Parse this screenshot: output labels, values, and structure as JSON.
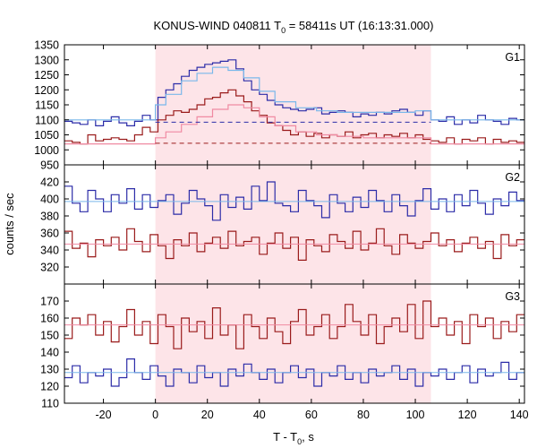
{
  "figure": {
    "title_main": "KONUS-WIND 040811 T",
    "title_sub": "0",
    "title_rest": " = 58411s UT (16:13:31.000)",
    "ylabel": "counts / sec",
    "xlabel_main": "T - T",
    "xlabel_sub": "0",
    "xlabel_rest": ", s"
  },
  "chart_data": [
    {
      "type": "line",
      "panel": "G1",
      "label": "G1",
      "xlim": [
        -35,
        142
      ],
      "ylim": [
        950,
        1350
      ],
      "yticks": [
        950,
        1000,
        1050,
        1100,
        1150,
        1200,
        1250,
        1300,
        1350
      ],
      "xticks": [
        -20,
        0,
        20,
        40,
        60,
        80,
        100,
        120,
        140
      ],
      "highlight_range": [
        0,
        106
      ],
      "series": [
        {
          "color": "#2c2ca8",
          "style": "step",
          "x": [
            -35,
            -32,
            -29,
            -26,
            -23,
            -20,
            -17,
            -14,
            -11,
            -8,
            -5,
            -2,
            1,
            4,
            7,
            10,
            13,
            16,
            19,
            22,
            25,
            28,
            31,
            34,
            37,
            40,
            43,
            46,
            49,
            52,
            55,
            58,
            61,
            64,
            67,
            70,
            73,
            76,
            79,
            82,
            85,
            88,
            91,
            94,
            97,
            100,
            103,
            106,
            109,
            112,
            115,
            118,
            121,
            124,
            127,
            130,
            133,
            136,
            139,
            142
          ],
          "y": [
            1095,
            1090,
            1085,
            1100,
            1080,
            1095,
            1110,
            1090,
            1080,
            1095,
            1115,
            1100,
            1175,
            1200,
            1220,
            1245,
            1265,
            1275,
            1285,
            1290,
            1295,
            1300,
            1270,
            1230,
            1200,
            1185,
            1165,
            1150,
            1140,
            1135,
            1130,
            1135,
            1140,
            1120,
            1125,
            1130,
            1125,
            1110,
            1120,
            1115,
            1125,
            1120,
            1130,
            1135,
            1125,
            1115,
            1130,
            1100,
            1095,
            1110,
            1085,
            1100,
            1090,
            1115,
            1100,
            1095,
            1085,
            1105,
            1100,
            1090
          ]
        },
        {
          "color": "#9a1b1b",
          "style": "step",
          "x": [
            -35,
            -32,
            -29,
            -26,
            -23,
            -20,
            -17,
            -14,
            -11,
            -8,
            -5,
            -2,
            1,
            4,
            7,
            10,
            13,
            16,
            19,
            22,
            25,
            28,
            31,
            34,
            37,
            40,
            43,
            46,
            49,
            52,
            55,
            58,
            61,
            64,
            67,
            70,
            73,
            76,
            79,
            82,
            85,
            88,
            91,
            94,
            97,
            100,
            103,
            106,
            109,
            112,
            115,
            118,
            121,
            124,
            127,
            130,
            133,
            136,
            139,
            142
          ],
          "y": [
            1030,
            1025,
            1020,
            1050,
            1030,
            1035,
            1040,
            1035,
            1030,
            1050,
            1075,
            1060,
            1100,
            1115,
            1130,
            1125,
            1135,
            1150,
            1170,
            1175,
            1190,
            1200,
            1180,
            1160,
            1130,
            1115,
            1090,
            1080,
            1065,
            1050,
            1060,
            1045,
            1055,
            1040,
            1050,
            1045,
            1060,
            1040,
            1050,
            1055,
            1040,
            1050,
            1045,
            1055,
            1040,
            1050,
            1035,
            1030,
            1025,
            1040,
            1020,
            1035,
            1030,
            1040,
            1020,
            1035,
            1025,
            1030,
            1025,
            1020
          ]
        },
        {
          "color": "#7ab8ea",
          "style": "step",
          "x": [
            -35,
            0,
            4,
            10,
            16,
            22,
            28,
            34,
            40,
            46,
            54,
            62,
            70,
            80,
            90,
            100,
            106,
            142
          ],
          "y": [
            1100,
            1150,
            1185,
            1230,
            1255,
            1275,
            1265,
            1240,
            1195,
            1160,
            1140,
            1130,
            1125,
            1125,
            1125,
            1130,
            1100,
            1100
          ]
        },
        {
          "color": "#f08aa2",
          "style": "step",
          "x": [
            -35,
            0,
            4,
            10,
            16,
            22,
            28,
            34,
            40,
            46,
            54,
            62,
            70,
            80,
            90,
            100,
            106,
            142
          ],
          "y": [
            1020,
            1040,
            1060,
            1085,
            1110,
            1135,
            1150,
            1140,
            1110,
            1080,
            1060,
            1050,
            1045,
            1040,
            1040,
            1040,
            1020,
            1020
          ]
        },
        {
          "color": "#2c2ca8",
          "style": "dashed",
          "x": [
            0,
            106
          ],
          "y": [
            1092,
            1092
          ]
        },
        {
          "color": "#9a1b1b",
          "style": "dashed",
          "x": [
            0,
            106
          ],
          "y": [
            1022,
            1022
          ]
        }
      ]
    },
    {
      "type": "line",
      "panel": "G2",
      "label": "G2",
      "xlim": [
        -35,
        142
      ],
      "ylim": [
        300,
        440
      ],
      "yticks": [
        300,
        320,
        340,
        360,
        380,
        400,
        420
      ],
      "xticks": [
        -20,
        0,
        20,
        40,
        60,
        80,
        100,
        120,
        140
      ],
      "highlight_range": [
        0,
        106
      ],
      "series": [
        {
          "color": "#2c2ca8",
          "style": "step",
          "x": [
            -35,
            -32,
            -29,
            -26,
            -23,
            -20,
            -17,
            -14,
            -11,
            -8,
            -5,
            -2,
            1,
            4,
            7,
            10,
            13,
            16,
            19,
            22,
            25,
            28,
            31,
            34,
            37,
            40,
            43,
            46,
            49,
            52,
            55,
            58,
            61,
            64,
            67,
            70,
            73,
            76,
            79,
            82,
            85,
            88,
            91,
            94,
            97,
            100,
            103,
            106,
            109,
            112,
            115,
            118,
            121,
            124,
            127,
            130,
            133,
            136,
            139,
            142
          ],
          "y": [
            415,
            395,
            385,
            410,
            400,
            385,
            405,
            395,
            412,
            388,
            405,
            390,
            398,
            405,
            382,
            395,
            410,
            400,
            392,
            375,
            405,
            390,
            402,
            388,
            415,
            398,
            420,
            395,
            392,
            385,
            410,
            398,
            392,
            378,
            405,
            395,
            385,
            402,
            390,
            410,
            398,
            385,
            405,
            392,
            380,
            398,
            412,
            388,
            400,
            385,
            405,
            392,
            410,
            395,
            382,
            400,
            392,
            408,
            398,
            392
          ]
        },
        {
          "color": "#9a1b1b",
          "style": "step",
          "x": [
            -35,
            -32,
            -29,
            -26,
            -23,
            -20,
            -17,
            -14,
            -11,
            -8,
            -5,
            -2,
            1,
            4,
            7,
            10,
            13,
            16,
            19,
            22,
            25,
            28,
            31,
            34,
            37,
            40,
            43,
            46,
            49,
            52,
            55,
            58,
            61,
            64,
            67,
            70,
            73,
            76,
            79,
            82,
            85,
            88,
            91,
            94,
            97,
            100,
            103,
            106,
            109,
            112,
            115,
            118,
            121,
            124,
            127,
            130,
            133,
            136,
            139,
            142
          ],
          "y": [
            362,
            342,
            348,
            332,
            352,
            345,
            355,
            340,
            365,
            350,
            338,
            358,
            345,
            330,
            352,
            345,
            360,
            338,
            348,
            355,
            342,
            362,
            345,
            350,
            355,
            335,
            348,
            360,
            342,
            355,
            328,
            352,
            345,
            338,
            358,
            350,
            342,
            362,
            340,
            348,
            365,
            345,
            335,
            358,
            348,
            342,
            350,
            360,
            345,
            352,
            338,
            348,
            355,
            342,
            350,
            330,
            358,
            345,
            352,
            340
          ]
        },
        {
          "color": "#7ab8ea",
          "style": "line",
          "x": [
            -35,
            142
          ],
          "y": [
            397,
            397
          ]
        },
        {
          "color": "#f08aa2",
          "style": "line",
          "x": [
            -35,
            142
          ],
          "y": [
            347,
            347
          ]
        }
      ]
    },
    {
      "type": "line",
      "panel": "G3",
      "label": "G3",
      "xlim": [
        -35,
        142
      ],
      "ylim": [
        110,
        180
      ],
      "yticks": [
        110,
        120,
        130,
        140,
        150,
        160,
        170
      ],
      "xticks": [
        -20,
        0,
        20,
        40,
        60,
        80,
        100,
        120,
        140
      ],
      "highlight_range": [
        0,
        106
      ],
      "series": [
        {
          "color": "#9a1b1b",
          "style": "step",
          "x": [
            -35,
            -32,
            -29,
            -26,
            -23,
            -20,
            -17,
            -14,
            -11,
            -8,
            -5,
            -2,
            1,
            4,
            7,
            10,
            13,
            16,
            19,
            22,
            25,
            28,
            31,
            34,
            37,
            40,
            43,
            46,
            49,
            52,
            55,
            58,
            61,
            64,
            67,
            70,
            73,
            76,
            79,
            82,
            85,
            88,
            91,
            94,
            97,
            100,
            103,
            106,
            109,
            112,
            115,
            118,
            121,
            124,
            127,
            130,
            133,
            136,
            139,
            142
          ],
          "y": [
            148,
            160,
            156,
            162,
            150,
            158,
            146,
            155,
            165,
            150,
            158,
            145,
            162,
            155,
            142,
            160,
            152,
            158,
            148,
            166,
            150,
            156,
            142,
            162,
            155,
            148,
            160,
            152,
            145,
            158,
            165,
            150,
            155,
            162,
            148,
            155,
            168,
            158,
            150,
            162,
            145,
            155,
            160,
            152,
            168,
            148,
            170,
            155,
            160,
            150,
            158,
            145,
            162,
            155,
            160,
            148,
            158,
            152,
            162,
            155
          ]
        },
        {
          "color": "#2c2ca8",
          "style": "step",
          "x": [
            -35,
            -32,
            -29,
            -26,
            -23,
            -20,
            -17,
            -14,
            -11,
            -8,
            -5,
            -2,
            1,
            4,
            7,
            10,
            13,
            16,
            19,
            22,
            25,
            28,
            31,
            34,
            37,
            40,
            43,
            46,
            49,
            52,
            55,
            58,
            61,
            64,
            67,
            70,
            73,
            76,
            79,
            82,
            85,
            88,
            91,
            94,
            97,
            100,
            103,
            106,
            109,
            112,
            115,
            118,
            121,
            124,
            127,
            130,
            133,
            136,
            139,
            142
          ],
          "y": [
            125,
            132,
            122,
            128,
            126,
            130,
            120,
            125,
            136,
            128,
            124,
            132,
            126,
            120,
            130,
            128,
            122,
            132,
            125,
            128,
            120,
            130,
            126,
            133,
            128,
            124,
            130,
            122,
            128,
            132,
            125,
            130,
            120,
            128,
            126,
            132,
            124,
            128,
            122,
            130,
            126,
            128,
            132,
            124,
            130,
            120,
            128,
            126,
            130,
            124,
            128,
            132,
            122,
            130,
            126,
            128,
            134,
            124,
            128,
            126
          ]
        },
        {
          "color": "#7ab8ea",
          "style": "line",
          "x": [
            -35,
            142
          ],
          "y": [
            128,
            128
          ]
        },
        {
          "color": "#f08aa2",
          "style": "line",
          "x": [
            -35,
            142
          ],
          "y": [
            156,
            156
          ]
        }
      ]
    }
  ]
}
